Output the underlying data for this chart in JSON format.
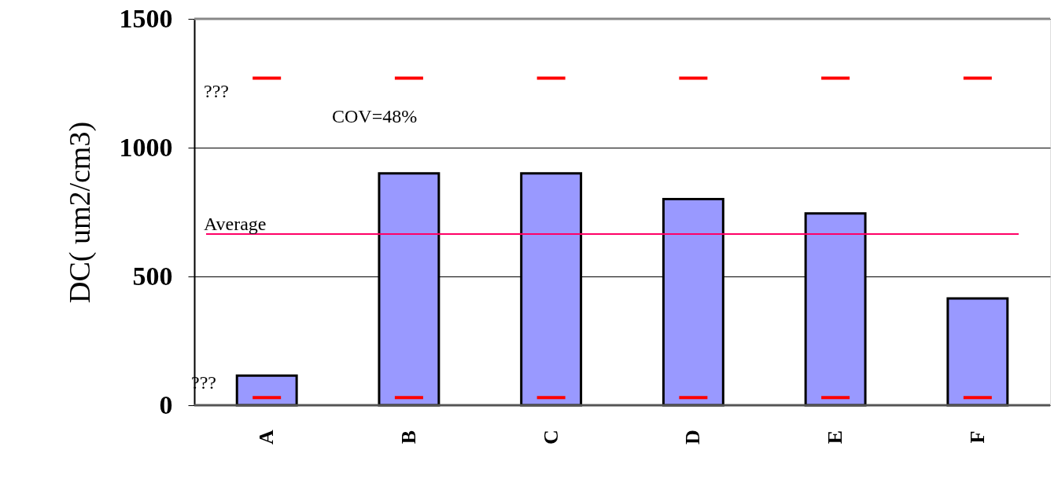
{
  "chart_data": {
    "type": "bar",
    "ylabel": "DC(  um2/cm3)",
    "categories": [
      "A",
      "B",
      "C",
      "D",
      "E",
      "F"
    ],
    "series": [
      {
        "color": "#9999ff",
        "values": [
          115,
          900,
          900,
          800,
          745,
          415
        ]
      }
    ],
    "ylim": [
      0,
      1500
    ],
    "yticks": [
      0,
      500,
      1000,
      1500
    ],
    "grid": "y",
    "ref_lines": [
      {
        "axis": "y",
        "value": 665,
        "label": "Average",
        "color": "#ff0066"
      },
      {
        "axis": "y",
        "value": 1270,
        "label": "???",
        "color": "#ff0000",
        "line_style": "dashed"
      },
      {
        "axis": "y",
        "value": 30,
        "label": "???",
        "color": "#ff0000",
        "line_style": "dashed"
      }
    ],
    "annotations": [
      "COV=48%"
    ]
  }
}
